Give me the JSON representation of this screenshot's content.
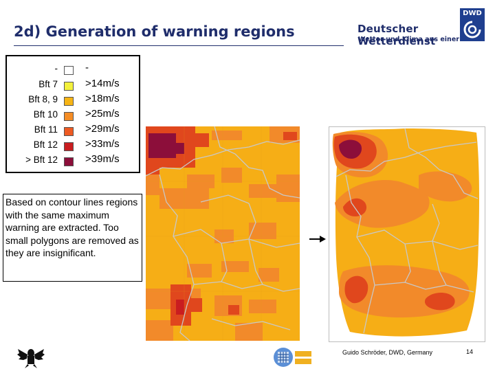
{
  "header": {
    "title": "2d) Generation of warning regions",
    "org_name": "Deutscher Wetterdienst",
    "org_tagline": "Wetter und Klima aus einer Hand",
    "logo_text": "DWD"
  },
  "legend": {
    "rows": [
      {
        "cls": "-",
        "speed": "-",
        "color": "#ffffff"
      },
      {
        "cls": "Bft 7",
        "speed": ">14m/s",
        "color": "#f3f13c"
      },
      {
        "cls": "Bft 8, 9",
        "speed": ">18m/s",
        "color": "#f7b414"
      },
      {
        "cls": "Bft 10",
        "speed": ">25m/s",
        "color": "#f58d25"
      },
      {
        "cls": "Bft 11",
        "speed": ">29m/s",
        "color": "#ee5a22"
      },
      {
        "cls": "Bft 12",
        "speed": ">33m/s",
        "color": "#c91d20"
      },
      {
        "cls": "> Bft 12",
        "speed": ">39m/s",
        "color": "#8c0e3a"
      }
    ]
  },
  "description": "Based on contour lines regions with the same maximum warning are extracted. Too small polygons are removed as they are insignificant.",
  "footer": {
    "author": "Guido Schröder, DWD, Germany",
    "page_number": "14"
  },
  "colors": {
    "title": "#1f2d6b",
    "map_base": "#f6ae16",
    "map_orange": "#f28a2a",
    "map_red": "#e0471d",
    "map_darkred": "#8c0e3a",
    "border_lines": "#c8c8c8"
  },
  "icons": [
    "federal-eagle-icon",
    "autowarn-logo-icon",
    "dwd-logo-icon",
    "arrow-right-icon"
  ]
}
